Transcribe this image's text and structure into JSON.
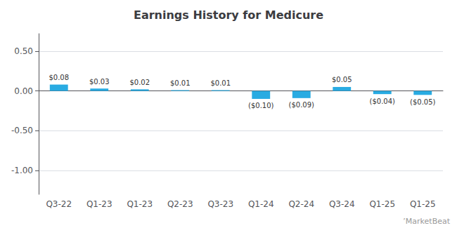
{
  "chart_data": {
    "type": "bar",
    "title": "Earnings History for Medicure",
    "categories": [
      "Q3-22",
      "Q1-23",
      "Q1-23",
      "Q2-23",
      "Q3-23",
      "Q1-24",
      "Q2-24",
      "Q3-24",
      "Q1-25",
      "Q1-25"
    ],
    "values": [
      0.08,
      0.03,
      0.02,
      0.01,
      0.01,
      -0.1,
      -0.09,
      0.05,
      -0.04,
      -0.05
    ],
    "value_labels": [
      "$0.08",
      "$0.03",
      "$0.02",
      "$0.01",
      "$0.01",
      "($0.10)",
      "($0.09)",
      "$0.05",
      "($0.04)",
      "($0.05)"
    ],
    "data_labels": true,
    "color": "#29ABE2",
    "ylim": [
      -1.3,
      0.72
    ],
    "yticks": [
      {
        "value": -1.0,
        "label": "-1.00"
      },
      {
        "value": -0.5,
        "label": "-0.50"
      },
      {
        "value": 0.0,
        "label": "0.00"
      },
      {
        "value": 0.5,
        "label": "0.50"
      }
    ],
    "grid": true,
    "annotations": [
      "’MarketBeat"
    ]
  }
}
